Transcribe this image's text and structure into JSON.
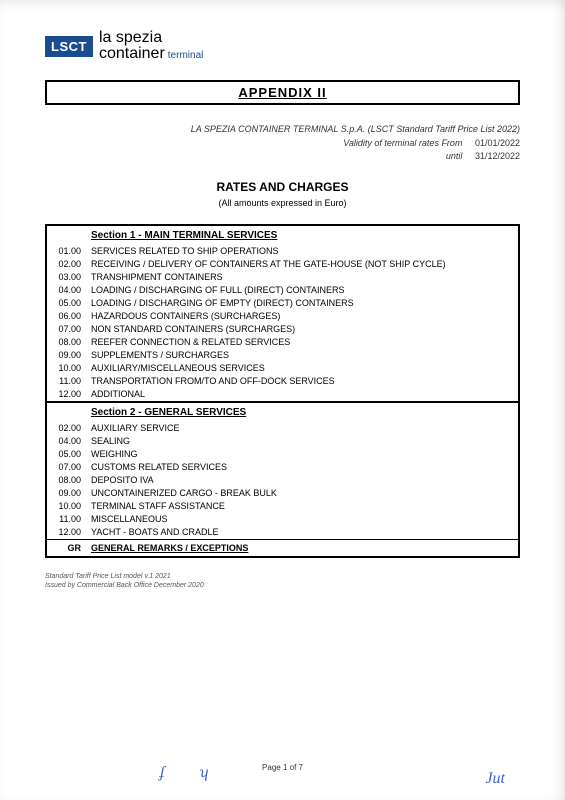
{
  "logo": {
    "badge": "LSCT",
    "line1": "la spezia",
    "line2": "container",
    "term": "terminal"
  },
  "appendix_title": "APPENDIX  II",
  "header": {
    "company": "LA SPEZIA CONTAINER TERMINAL S.p.A. (LSCT Standard Tariff Price List 2022)",
    "validity_label_from": "Validity of terminal rates  From",
    "date_from": "01/01/2022",
    "validity_label_until": "until",
    "date_until": "31/12/2022"
  },
  "rates_title": "RATES AND CHARGES",
  "rates_sub": "(All amounts expressed in Euro)",
  "section1_title": "Section 1 - MAIN TERMINAL SERVICES",
  "section1": [
    {
      "code": "01.00",
      "label": "SERVICES RELATED TO SHIP OPERATIONS"
    },
    {
      "code": "02.00",
      "label": "RECEIVING / DELIVERY OF CONTAINERS AT THE GATE-HOUSE (NOT SHIP CYCLE)"
    },
    {
      "code": "03.00",
      "label": "TRANSHIPMENT CONTAINERS"
    },
    {
      "code": "04.00",
      "label": "LOADING / DISCHARGING OF FULL (DIRECT) CONTAINERS"
    },
    {
      "code": "05.00",
      "label": "LOADING / DISCHARGING OF EMPTY (DIRECT) CONTAINERS"
    },
    {
      "code": "06.00",
      "label": "HAZARDOUS  CONTAINERS (SURCHARGES)"
    },
    {
      "code": "07.00",
      "label": "NON STANDARD CONTAINERS (SURCHARGES)"
    },
    {
      "code": "08.00",
      "label": "REEFER CONNECTION & RELATED SERVICES"
    },
    {
      "code": "09.00",
      "label": "SUPPLEMENTS / SURCHARGES"
    },
    {
      "code": "10.00",
      "label": "AUXILIARY/MISCELLANEOUS SERVICES"
    },
    {
      "code": "11.00",
      "label": "TRANSPORTATION FROM/TO AND OFF-DOCK SERVICES"
    },
    {
      "code": "12.00",
      "label": "ADDITIONAL"
    }
  ],
  "section2_title": "Section 2 - GENERAL SERVICES",
  "section2": [
    {
      "code": "02.00",
      "label": "AUXILIARY SERVICE"
    },
    {
      "code": "04.00",
      "label": "SEALING"
    },
    {
      "code": "05.00",
      "label": "WEIGHING"
    },
    {
      "code": "07.00",
      "label": "CUSTOMS RELATED SERVICES"
    },
    {
      "code": "08.00",
      "label": "DEPOSITO IVA"
    },
    {
      "code": "09.00",
      "label": "UNCONTAINERIZED CARGO - BREAK BULK"
    },
    {
      "code": "10.00",
      "label": "TERMINAL STAFF ASSISTANCE"
    },
    {
      "code": "11.00",
      "label": "MISCELLANEOUS"
    },
    {
      "code": "12.00",
      "label": "YACHT - BOATS AND CRADLE"
    }
  ],
  "gr_code": "GR",
  "gr_label": "GENERAL REMARKS / EXCEPTIONS",
  "footnote1": "Standard Tariff Price List model v.1 2021",
  "footnote2": "Issued by Commercial Back Office December 2020",
  "page_num": "Page 1 of 7",
  "initials": {
    "i1": "ʄ",
    "i2": "ʮ",
    "i3": "Jut"
  }
}
